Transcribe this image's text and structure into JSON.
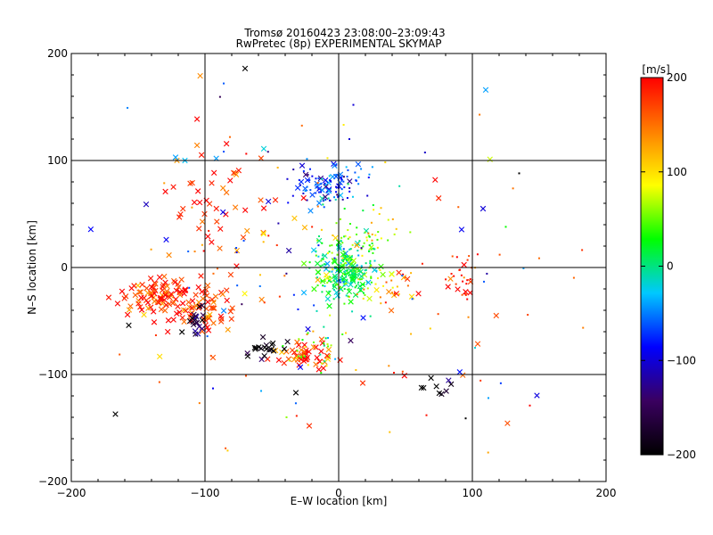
{
  "chart_data": {
    "type": "scatter",
    "title": "Tromsø 20160423 23:08:00–23:09:43",
    "subtitle": "RwPretec (8p) EXPERIMENTAL SKYMAP",
    "xlabel": "E–W location [km]",
    "ylabel": "N–S location [km]",
    "xlim": [
      -200,
      200
    ],
    "ylim": [
      -200,
      200
    ],
    "xticks": [
      "−200",
      "−100",
      "0",
      "100",
      "200"
    ],
    "yticks": [
      "−200",
      "−100",
      "0",
      "100",
      "200"
    ],
    "grid_lines": [
      -100,
      0,
      100
    ],
    "colorbar": {
      "label": "[m/s]",
      "range": [
        -200,
        200
      ],
      "ticks": [
        "200",
        "100",
        "0",
        "−100",
        "−200"
      ],
      "colormap": [
        "#000000",
        "#3a0060",
        "#0000ff",
        "#00c8ff",
        "#00ff00",
        "#ffff00",
        "#ff8000",
        "#ff0000"
      ]
    },
    "point_clusters": [
      {
        "markers": "dots and crosses",
        "center": [
          5,
          -5
        ],
        "spread": [
          12,
          15
        ],
        "velocity": 15,
        "count": 260,
        "density": "dense"
      },
      {
        "markers": "dots and crosses",
        "center": [
          -8,
          78
        ],
        "spread": [
          14,
          9
        ],
        "velocity": -70,
        "count": 110,
        "density": "dense"
      },
      {
        "markers": "crosses",
        "center": [
          -135,
          -25
        ],
        "spread": [
          15,
          9
        ],
        "velocity": 185,
        "count": 80,
        "density": "dense"
      },
      {
        "markers": "crosses",
        "center": [
          -105,
          -38
        ],
        "spread": [
          14,
          12
        ],
        "velocity": 170,
        "count": 70,
        "density": "dense"
      },
      {
        "markers": "crosses",
        "center": [
          -105,
          -50
        ],
        "spread": [
          6,
          6
        ],
        "velocity": -160,
        "count": 20,
        "density": "medium"
      },
      {
        "markers": "crosses",
        "center": [
          -25,
          -85
        ],
        "spread": [
          10,
          6
        ],
        "velocity": 190,
        "count": 45,
        "density": "dense"
      },
      {
        "markers": "crosses",
        "center": [
          -55,
          -75
        ],
        "spread": [
          8,
          5
        ],
        "velocity": -200,
        "count": 20,
        "density": "medium"
      },
      {
        "markers": "dots",
        "center": [
          -20,
          -75
        ],
        "spread": [
          12,
          10
        ],
        "velocity": 40,
        "count": 35,
        "density": "medium"
      },
      {
        "markers": "crosses",
        "center": [
          -95,
          60
        ],
        "spread": [
          20,
          25
        ],
        "velocity": 180,
        "count": 45,
        "density": "sparse"
      },
      {
        "markers": "dots",
        "center": [
          20,
          30
        ],
        "spread": [
          15,
          15
        ],
        "velocity": 60,
        "count": 50,
        "density": "sparse"
      },
      {
        "markers": "dots and crosses",
        "center": [
          40,
          -20
        ],
        "spread": [
          10,
          10
        ],
        "velocity": 120,
        "count": 30,
        "density": "sparse"
      },
      {
        "markers": "dots and crosses",
        "center": [
          92,
          -10
        ],
        "spread": [
          6,
          15
        ],
        "velocity": 185,
        "count": 30,
        "density": "sparse"
      },
      {
        "markers": "crosses",
        "center": [
          78,
          -110
        ],
        "spread": [
          8,
          5
        ],
        "velocity": -200,
        "count": 8,
        "density": "sparse"
      },
      {
        "markers": "dots and crosses",
        "center": [
          0,
          0
        ],
        "spread": [
          90,
          80
        ],
        "velocity": 150,
        "count": 90,
        "density": "scattered"
      },
      {
        "markers": "dots and crosses",
        "center": [
          0,
          0
        ],
        "spread": [
          90,
          80
        ],
        "velocity": -80,
        "count": 50,
        "density": "scattered"
      }
    ],
    "isolated_points": [
      {
        "x": -70,
        "y": 186,
        "v": -200,
        "marker": "x"
      },
      {
        "x": 110,
        "y": 166,
        "v": -40,
        "marker": "x"
      },
      {
        "x": -86,
        "y": 172,
        "v": -60,
        "marker": "dot"
      },
      {
        "x": 11,
        "y": 152,
        "v": -100,
        "marker": "dot"
      },
      {
        "x": 8,
        "y": 120,
        "v": -100,
        "marker": "dot"
      },
      {
        "x": -122,
        "y": 103,
        "v": -40,
        "marker": "x"
      },
      {
        "x": -115,
        "y": 100,
        "v": -30,
        "marker": "x"
      },
      {
        "x": -56,
        "y": 111,
        "v": -20,
        "marker": "x"
      },
      {
        "x": 135,
        "y": 88,
        "v": -200,
        "marker": "dot"
      },
      {
        "x": 108,
        "y": 55,
        "v": -100,
        "marker": "x"
      },
      {
        "x": -144,
        "y": 59,
        "v": -110,
        "marker": "x"
      },
      {
        "x": -129,
        "y": 26,
        "v": -90,
        "marker": "x"
      },
      {
        "x": -167,
        "y": -137,
        "v": -200,
        "marker": "x"
      },
      {
        "x": -32,
        "y": -117,
        "v": -200,
        "marker": "x"
      },
      {
        "x": -22,
        "y": -148,
        "v": 180,
        "marker": "x"
      },
      {
        "x": 95,
        "y": -141,
        "v": -200,
        "marker": "dot"
      },
      {
        "x": 143,
        "y": -129,
        "v": 200,
        "marker": "dot"
      },
      {
        "x": 112,
        "y": -122,
        "v": -40,
        "marker": "dot"
      },
      {
        "x": 125,
        "y": 38,
        "v": 30,
        "marker": "dot"
      },
      {
        "x": 102,
        "y": -75,
        "v": -20,
        "marker": "dot"
      },
      {
        "x": -157,
        "y": -54,
        "v": -200,
        "marker": "x"
      },
      {
        "x": -172,
        "y": -28,
        "v": 190,
        "marker": "x"
      },
      {
        "x": 18,
        "y": -108,
        "v": 180,
        "marker": "x"
      },
      {
        "x": -94,
        "y": -113,
        "v": -90,
        "marker": "dot"
      },
      {
        "x": -39,
        "y": -140,
        "v": 60,
        "marker": "dot"
      }
    ]
  }
}
